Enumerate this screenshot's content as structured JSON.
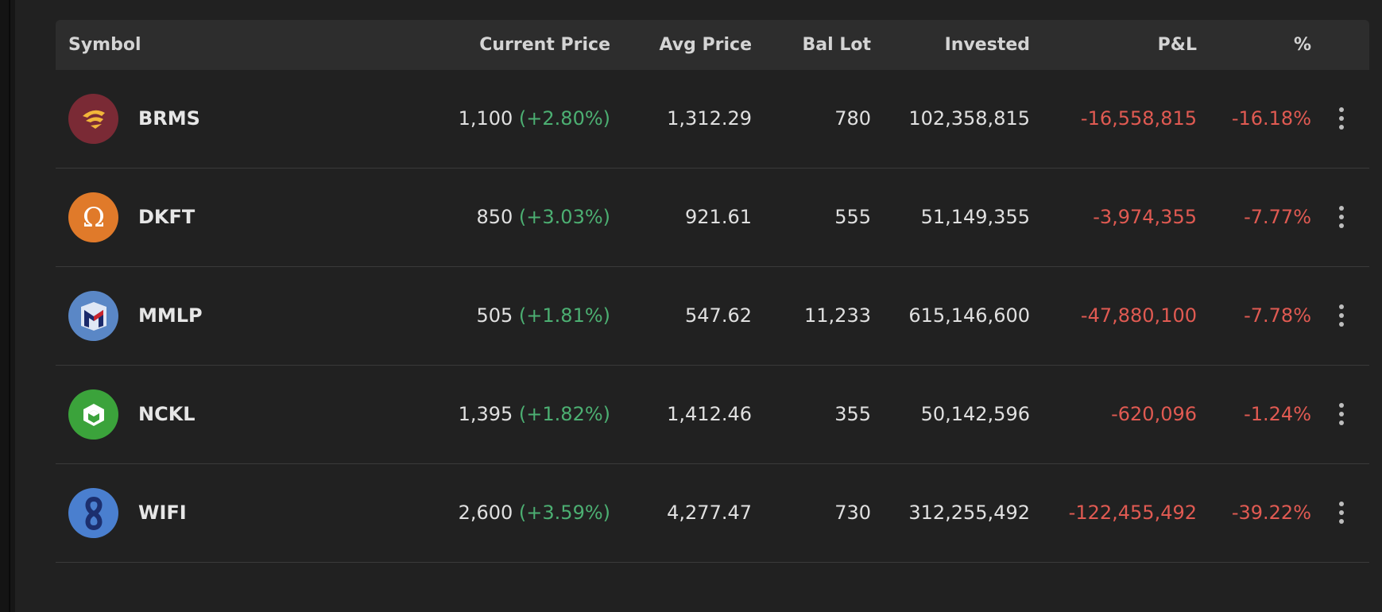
{
  "table": {
    "headers": {
      "symbol": "Symbol",
      "current_price": "Current Price",
      "avg_price": "Avg Price",
      "bal_lot": "Bal Lot",
      "invested": "Invested",
      "pnl": "P&L",
      "pct": "%"
    },
    "rows": [
      {
        "symbol": "BRMS",
        "logo_icon": "brms-logo-icon",
        "logo_color": "#7a2a35",
        "price": "1,100",
        "change": "(+2.80%)",
        "avg_price": "1,312.29",
        "bal_lot": "780",
        "invested": "102,358,815",
        "pnl": "-16,558,815",
        "pct": "-16.18%"
      },
      {
        "symbol": "DKFT",
        "logo_icon": "omega-logo-icon",
        "logo_color": "#e07a2a",
        "price": "850",
        "change": "(+3.03%)",
        "avg_price": "921.61",
        "bal_lot": "555",
        "invested": "51,149,355",
        "pnl": "-3,974,355",
        "pct": "-7.77%"
      },
      {
        "symbol": "MMLP",
        "logo_icon": "m-cube-logo-icon",
        "logo_color": "#5a87c6",
        "price": "505",
        "change": "(+1.81%)",
        "avg_price": "547.62",
        "bal_lot": "11,233",
        "invested": "615,146,600",
        "pnl": "-47,880,100",
        "pct": "-7.78%"
      },
      {
        "symbol": "NCKL",
        "logo_icon": "hexagon-cube-logo-icon",
        "logo_color": "#3ba33b",
        "price": "1,395",
        "change": "(+1.82%)",
        "avg_price": "1,412.46",
        "bal_lot": "355",
        "invested": "50,142,596",
        "pnl": "-620,096",
        "pct": "-1.24%"
      },
      {
        "symbol": "WIFI",
        "logo_icon": "figure-eight-logo-icon",
        "logo_color": "#4a7fcf",
        "price": "2,600",
        "change": "(+3.59%)",
        "avg_price": "4,277.47",
        "bal_lot": "730",
        "invested": "312,255,492",
        "pnl": "-122,455,492",
        "pct": "-39.22%"
      }
    ]
  },
  "colors": {
    "positive": "#4caf72",
    "negative": "#e05a52",
    "header_bg": "#2d2d2d",
    "panel_bg": "#212121"
  }
}
